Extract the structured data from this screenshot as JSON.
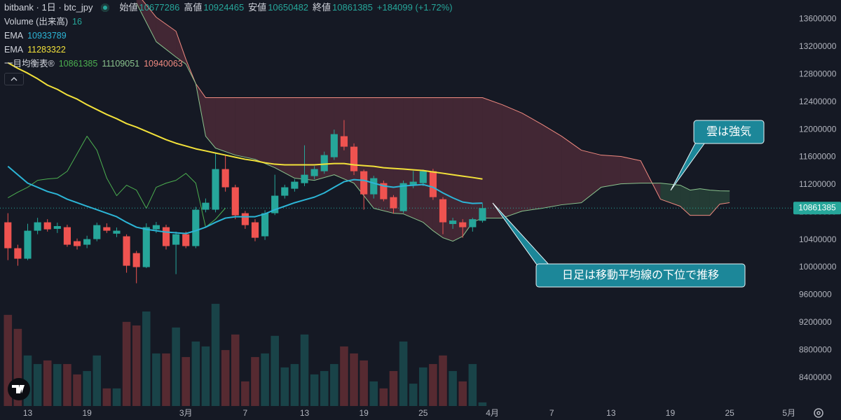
{
  "chart_data": {
    "type": "candlestick",
    "header": {
      "symbol": "bitbank · 1日 · btc_jpy",
      "open_label": "始値",
      "high_label": "高値",
      "low_label": "安値",
      "close_label": "終値",
      "change": "+184099 (+1.72%)"
    },
    "x": [
      -2,
      -1,
      0,
      1,
      2,
      3,
      4,
      5,
      6,
      7,
      8,
      9,
      10,
      11,
      12,
      13,
      14,
      15,
      16,
      17,
      18,
      19,
      20,
      21,
      22,
      23,
      24,
      25,
      26,
      27,
      28,
      29,
      30,
      31,
      32,
      33,
      34,
      35,
      36,
      37,
      38,
      39,
      40,
      41,
      42,
      43,
      44,
      45,
      46
    ],
    "xlim": [
      -2.8,
      77.3
    ],
    "xticks": [
      {
        "value": 0,
        "label": "13"
      },
      {
        "value": 6,
        "label": "19"
      },
      {
        "value": 16,
        "label": "3月"
      },
      {
        "value": 22,
        "label": "7"
      },
      {
        "value": 28,
        "label": "13"
      },
      {
        "value": 34,
        "label": "19"
      },
      {
        "value": 40,
        "label": "25"
      },
      {
        "value": 47,
        "label": "4月"
      },
      {
        "value": 53,
        "label": "7"
      },
      {
        "value": 59,
        "label": "13"
      },
      {
        "value": 65,
        "label": "19"
      },
      {
        "value": 71,
        "label": "25"
      },
      {
        "value": 77,
        "label": "5月"
      }
    ],
    "ylim": [
      7990000,
      13880000
    ],
    "yticks": [
      8400000,
      8800000,
      9200000,
      9600000,
      10000000,
      10400000,
      10800000,
      11200000,
      11600000,
      12000000,
      12400000,
      12800000,
      13200000,
      13600000
    ],
    "up_color": "#26a69a",
    "down_color": "#ef5350",
    "open": [
      10655000,
      10279000,
      10127000,
      10533000,
      10655000,
      10560000,
      10584000,
      10381000,
      10330000,
      10411000,
      10584000,
      10490000,
      10452000,
      10208000,
      10005000,
      10553000,
      10584000,
      10330000,
      10482000,
      10310000,
      10838000,
      10838000,
      11427000,
      11163000,
      10787000,
      10655000,
      10452000,
      10787000,
      11041000,
      11142000,
      11223000,
      11325000,
      11396000,
      11599000,
      11904000,
      11752000,
      11396000,
      11061000,
      11223000,
      11020000,
      10817000,
      11200000,
      11223000,
      11396000,
      10990000,
      10630000,
      10655000,
      10584000,
      10677286
    ],
    "high": [
      10787000,
      10330000,
      10634000,
      10720000,
      10700000,
      10650000,
      10620000,
      10420000,
      10460000,
      10650000,
      10640000,
      10580000,
      10480000,
      10240000,
      10640000,
      10660000,
      10620000,
      10520000,
      10520000,
      10880000,
      11000000,
      11650000,
      11620000,
      11200000,
      10820000,
      10700000,
      10830000,
      11345000,
      11200000,
      11280000,
      11772000,
      11470000,
      11680000,
      12000000,
      12138000,
      11800000,
      11420000,
      11330000,
      11260000,
      11050000,
      11260000,
      11400000,
      11420000,
      11430000,
      11020000,
      10720000,
      10700000,
      10720000,
      10924465
    ],
    "low": [
      10106000,
      10025000,
      10106000,
      10482000,
      10520000,
      10500000,
      10300000,
      10260000,
      10280000,
      10380000,
      10500000,
      10440000,
      9924000,
      9771000,
      9990000,
      10500000,
      10260000,
      9903000,
      10280000,
      10280000,
      10800000,
      10800000,
      11100000,
      10700000,
      10560000,
      10380000,
      10400000,
      10760000,
      11000000,
      11100000,
      11180000,
      11280000,
      11360000,
      11560000,
      11700000,
      11340000,
      10838000,
      11000000,
      10960000,
      10780000,
      10790000,
      11150000,
      11180000,
      10980000,
      10482000,
      10560000,
      10431000,
      10520000,
      10650482
    ],
    "close": [
      10279000,
      10127000,
      10533000,
      10655000,
      10553000,
      10600000,
      10330000,
      10310000,
      10411000,
      10614000,
      10533000,
      10533000,
      10025000,
      10005000,
      10584000,
      10614000,
      10310000,
      10482000,
      10310000,
      10838000,
      10939000,
      11427000,
      11163000,
      10756000,
      10614000,
      10431000,
      10787000,
      11041000,
      11163000,
      11244000,
      11345000,
      11427000,
      11630000,
      11934000,
      11752000,
      11396000,
      11061000,
      11295000,
      10990000,
      10858000,
      11223000,
      11244000,
      11396000,
      11020000,
      10655000,
      10680000,
      10584000,
      10700000,
      10861385
    ],
    "volume": {
      "name": "Volume (出来高)",
      "ylim": [
        0,
        1800
      ],
      "values": [
        404,
        342,
        224,
        186,
        202,
        186,
        186,
        140,
        155,
        224,
        78,
        78,
        373,
        357,
        419,
        233,
        233,
        348,
        217,
        286,
        264,
        453,
        248,
        317,
        109,
        217,
        233,
        311,
        171,
        186,
        317,
        140,
        155,
        186,
        264,
        233,
        202,
        109,
        78,
        155,
        286,
        99,
        171,
        186,
        224,
        155,
        109,
        186,
        16
      ]
    },
    "series": [
      {
        "name": "EMA",
        "color": "#2cb5d6",
        "values": [
          11467000,
          11345000,
          11223000,
          11163000,
          11102000,
          11061000,
          10990000,
          10939000,
          10888000,
          10838000,
          10787000,
          10736000,
          10655000,
          10584000,
          10553000,
          10533000,
          10513000,
          10503000,
          10492000,
          10533000,
          10584000,
          10655000,
          10716000,
          10736000,
          10736000,
          10736000,
          10777000,
          10838000,
          10888000,
          10939000,
          10980000,
          11020000,
          11081000,
          11163000,
          11244000,
          11274000,
          11264000,
          11223000,
          11183000,
          11163000,
          11183000,
          11193000,
          11203000,
          11163000,
          11081000,
          11010000,
          10949000,
          10929000,
          10933789
        ]
      },
      {
        "name": "EMA",
        "color": "#f2e13a",
        "values": [
          12970000,
          12889000,
          12818000,
          12737000,
          12645000,
          12584000,
          12503000,
          12442000,
          12361000,
          12290000,
          12219000,
          12158000,
          12087000,
          12036000,
          11975000,
          11914000,
          11853000,
          11802000,
          11762000,
          11721000,
          11691000,
          11660000,
          11630000,
          11599000,
          11569000,
          11548000,
          11518000,
          11498000,
          11488000,
          11488000,
          11488000,
          11488000,
          11498000,
          11508000,
          11508000,
          11488000,
          11477000,
          11467000,
          11447000,
          11437000,
          11427000,
          11416000,
          11406000,
          11386000,
          11366000,
          11345000,
          11325000,
          11305000,
          11283322
        ]
      }
    ],
    "ichimoku": {
      "name": "一目均衡表®",
      "lagging": {
        "color": "#4caf50",
        "x": [
          -2,
          -1,
          0,
          1,
          2,
          3,
          4,
          5,
          6,
          7,
          8,
          9,
          10,
          11,
          12,
          13,
          14,
          15,
          16,
          17,
          18,
          19,
          20
        ],
        "values": [
          11010000,
          11092000,
          11163000,
          11264000,
          11284000,
          11295000,
          11396000,
          11650000,
          11904000,
          11701000,
          11295000,
          11041000,
          11193000,
          11122000,
          10858000,
          11163000,
          11223000,
          11264000,
          11365000,
          11223000,
          10584000,
          10700000,
          10861385
        ]
      },
      "span_x": [
        11,
        13,
        15,
        16,
        17,
        18,
        19,
        21,
        23,
        25,
        27,
        29,
        31,
        33,
        34,
        35,
        37,
        38,
        39,
        40,
        41,
        42,
        43,
        44,
        45,
        46,
        48,
        50,
        52,
        54,
        56,
        58,
        60,
        62,
        64,
        66,
        67,
        68,
        69,
        70,
        71
      ],
      "span_a": {
        "color": "#8bc48e",
        "values": [
          13834000,
          13275000,
          13052000,
          12950000,
          12666000,
          11904000,
          11731000,
          11630000,
          11569000,
          11447000,
          11295000,
          11264000,
          11345000,
          11223000,
          11041000,
          10858000,
          10787000,
          10777000,
          10716000,
          10655000,
          10533000,
          10431000,
          10381000,
          10452000,
          10655000,
          10716000,
          10716000,
          10817000,
          10858000,
          10909000,
          10939000,
          11163000,
          11213000,
          11223000,
          11223000,
          11193000,
          11122000,
          11142000,
          11122000,
          11112000,
          11109051
        ]
      },
      "span_b": {
        "color": "#f08a80",
        "values": [
          13986000,
          13630000,
          13427000,
          13021000,
          12666000,
          12463000,
          12463000,
          12463000,
          12463000,
          12463000,
          12463000,
          12463000,
          12463000,
          12463000,
          12463000,
          12463000,
          12463000,
          12463000,
          12463000,
          12463000,
          12463000,
          12463000,
          12463000,
          12463000,
          12463000,
          12463000,
          12361000,
          12239000,
          12077000,
          11904000,
          11701000,
          11630000,
          11610000,
          11548000,
          10990000,
          10888000,
          10756000,
          10756000,
          10756000,
          10919000,
          10940063
        ]
      },
      "bull_cloud_color": "rgba(76,150,96,0.28)",
      "bear_cloud_color": "rgba(140,62,78,0.38)"
    },
    "annotations": [
      {
        "text": "雲は強気"
      },
      {
        "text": "日足は移動平均線の下位で推移"
      }
    ]
  }
}
